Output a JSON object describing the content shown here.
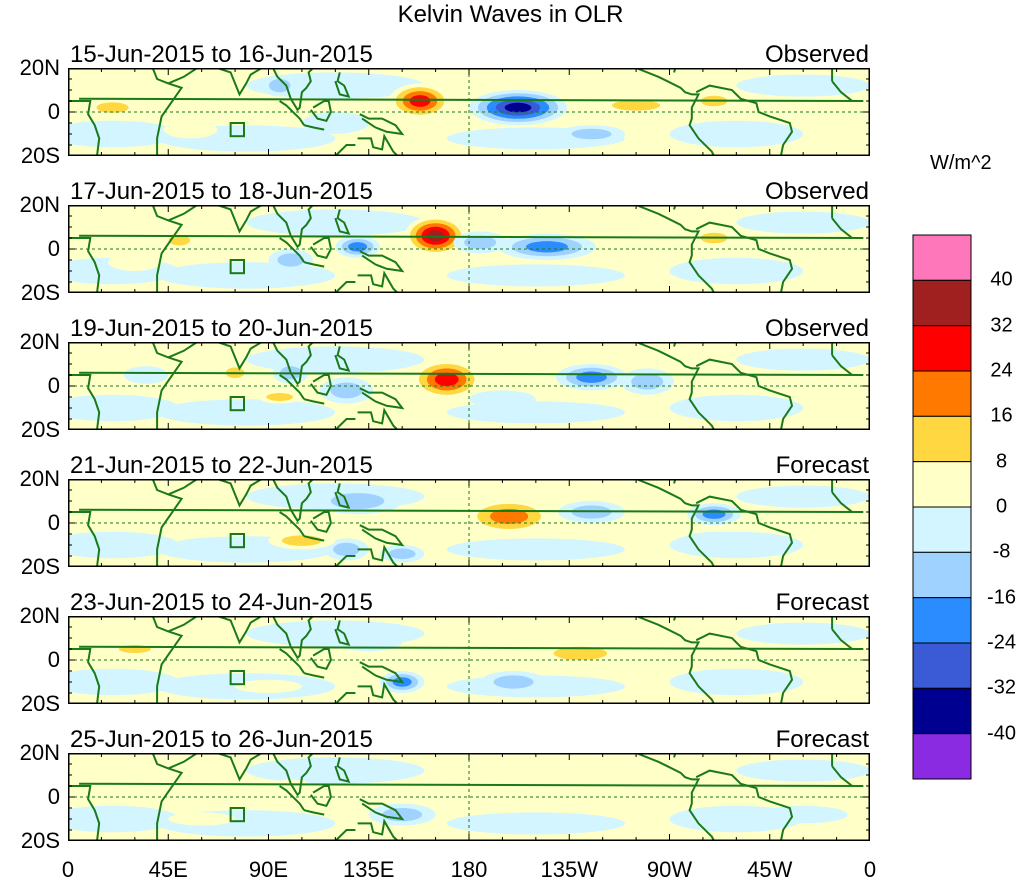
{
  "title": "Kelvin Waves in OLR",
  "panels": [
    {
      "label": "15-Jun-2015 to 16-Jun-2015",
      "type": "Observed",
      "anomalies": [
        {
          "lon": 158,
          "lat": 5,
          "v": 30,
          "rx": 14,
          "ry": 8
        },
        {
          "lon": -158,
          "lat": 2,
          "v": -34,
          "rx": 22,
          "ry": 8
        },
        {
          "lon": -70,
          "lat": 5,
          "v": 14,
          "rx": 10,
          "ry": 4
        },
        {
          "lon": -105,
          "lat": 3,
          "v": 10,
          "rx": 18,
          "ry": 4
        },
        {
          "lon": 20,
          "lat": 2,
          "v": 10,
          "rx": 12,
          "ry": 4
        },
        {
          "lon": 95,
          "lat": 12,
          "v": -12,
          "rx": 8,
          "ry": 5
        },
        {
          "lon": 120,
          "lat": -5,
          "v": -8,
          "rx": 15,
          "ry": 5
        },
        {
          "lon": -125,
          "lat": -10,
          "v": -10,
          "rx": 15,
          "ry": 4
        },
        {
          "lon": 55,
          "lat": -8,
          "v": 8,
          "rx": 12,
          "ry": 4
        }
      ]
    },
    {
      "label": "17-Jun-2015 to 18-Jun-2015",
      "type": "Observed",
      "anomalies": [
        {
          "lon": 165,
          "lat": 6,
          "v": 34,
          "rx": 14,
          "ry": 9
        },
        {
          "lon": -145,
          "lat": 1,
          "v": -22,
          "rx": 22,
          "ry": 6
        },
        {
          "lon": -175,
          "lat": 3,
          "v": -16,
          "rx": 12,
          "ry": 5
        },
        {
          "lon": 50,
          "lat": 4,
          "v": 14,
          "rx": 8,
          "ry": 4
        },
        {
          "lon": 130,
          "lat": 1,
          "v": -18,
          "rx": 10,
          "ry": 5
        },
        {
          "lon": -70,
          "lat": 5,
          "v": 10,
          "rx": 10,
          "ry": 4
        },
        {
          "lon": 100,
          "lat": -5,
          "v": -10,
          "rx": 10,
          "ry": 5
        },
        {
          "lon": 30,
          "lat": -6,
          "v": 8,
          "rx": 12,
          "ry": 4
        }
      ]
    },
    {
      "label": "19-Jun-2015 to 20-Jun-2015",
      "type": "Observed",
      "anomalies": [
        {
          "lon": 170,
          "lat": 3,
          "v": 32,
          "rx": 16,
          "ry": 9
        },
        {
          "lon": -125,
          "lat": 4,
          "v": -20,
          "rx": 16,
          "ry": 6
        },
        {
          "lon": -100,
          "lat": 2,
          "v": -12,
          "rx": 12,
          "ry": 6
        },
        {
          "lon": 75,
          "lat": 6,
          "v": 14,
          "rx": 7,
          "ry": 4
        },
        {
          "lon": 125,
          "lat": -2,
          "v": -16,
          "rx": 12,
          "ry": 6
        },
        {
          "lon": 100,
          "lat": 6,
          "v": -12,
          "rx": 8,
          "ry": 5
        },
        {
          "lon": 35,
          "lat": 5,
          "v": -8,
          "rx": 10,
          "ry": 4
        },
        {
          "lon": -165,
          "lat": -6,
          "v": -8,
          "rx": 15,
          "ry": 4
        },
        {
          "lon": 95,
          "lat": -5,
          "v": 10,
          "rx": 10,
          "ry": 3
        }
      ]
    },
    {
      "label": "21-Jun-2015 to 22-Jun-2015",
      "type": "Forecast",
      "anomalies": [
        {
          "lon": -162,
          "lat": 3,
          "v": 24,
          "rx": 20,
          "ry": 8
        },
        {
          "lon": -70,
          "lat": 4,
          "v": -18,
          "rx": 12,
          "ry": 5
        },
        {
          "lon": 130,
          "lat": 10,
          "v": -10,
          "rx": 20,
          "ry": 6
        },
        {
          "lon": 125,
          "lat": -12,
          "v": -14,
          "rx": 10,
          "ry": 5
        },
        {
          "lon": 150,
          "lat": -14,
          "v": -12,
          "rx": 10,
          "ry": 4
        },
        {
          "lon": 105,
          "lat": -8,
          "v": 10,
          "rx": 15,
          "ry": 4
        },
        {
          "lon": -125,
          "lat": 5,
          "v": -10,
          "rx": 15,
          "ry": 5
        },
        {
          "lon": -70,
          "lat": -8,
          "v": -8,
          "rx": 15,
          "ry": 4
        }
      ]
    },
    {
      "label": "23-Jun-2015 to 24-Jun-2015",
      "type": "Forecast",
      "anomalies": [
        {
          "lon": -130,
          "lat": 3,
          "v": 10,
          "rx": 20,
          "ry": 5
        },
        {
          "lon": 150,
          "lat": -10,
          "v": -18,
          "rx": 10,
          "ry": 5
        },
        {
          "lon": -160,
          "lat": -10,
          "v": -12,
          "rx": 15,
          "ry": 5
        },
        {
          "lon": 30,
          "lat": 5,
          "v": 10,
          "rx": 12,
          "ry": 3
        },
        {
          "lon": 135,
          "lat": 8,
          "v": -8,
          "rx": 15,
          "ry": 4
        },
        {
          "lon": -80,
          "lat": 10,
          "v": 8,
          "rx": 10,
          "ry": 3
        },
        {
          "lon": 90,
          "lat": -12,
          "v": 8,
          "rx": 15,
          "ry": 3
        }
      ]
    },
    {
      "label": "25-Jun-2015 to 26-Jun-2015",
      "type": "Forecast",
      "anomalies": [
        {
          "lon": -120,
          "lat": 0,
          "v": 8,
          "rx": 15,
          "ry": 5
        },
        {
          "lon": -75,
          "lat": 10,
          "v": 8,
          "rx": 10,
          "ry": 4
        },
        {
          "lon": 150,
          "lat": -8,
          "v": -10,
          "rx": 15,
          "ry": 5
        },
        {
          "lon": 60,
          "lat": -10,
          "v": 8,
          "rx": 15,
          "ry": 3
        },
        {
          "lon": -30,
          "lat": -8,
          "v": -8,
          "rx": 20,
          "ry": 4
        },
        {
          "lon": 100,
          "lat": 4,
          "v": 8,
          "rx": 10,
          "ry": 4
        }
      ]
    }
  ],
  "y_ticks": [
    "20N",
    "0",
    "20S"
  ],
  "x_ticks": [
    "0",
    "45E",
    "90E",
    "135E",
    "180",
    "135W",
    "90W",
    "45W",
    "0"
  ],
  "colorbar": {
    "title": "W/m^2",
    "labels": [
      "40",
      "32",
      "24",
      "16",
      "8",
      "0",
      "-8",
      "-16",
      "-24",
      "-32",
      "-40"
    ],
    "levels": [
      -40,
      -32,
      -24,
      -16,
      -8,
      0,
      8,
      16,
      24,
      32,
      40
    ],
    "colors": [
      "#FF77BB",
      "#A02020",
      "#FF0000",
      "#FF7800",
      "#FFD740",
      "#FFFFC8",
      "#D2F5FF",
      "#A0D2FF",
      "#2A8CFF",
      "#3A5AD6",
      "#000090",
      "#8A2BE2"
    ]
  },
  "chart_data": {
    "type": "heatmap",
    "title": "Kelvin Waves in OLR",
    "variable": "OLR anomaly",
    "units": "W/m^2",
    "x": "longitude",
    "y": "latitude",
    "ylim": [
      -20,
      20
    ],
    "xlim": [
      0,
      360
    ],
    "contour_levels": [
      -40,
      -32,
      -24,
      -16,
      -8,
      0,
      8,
      16,
      24,
      32,
      40
    ]
  }
}
